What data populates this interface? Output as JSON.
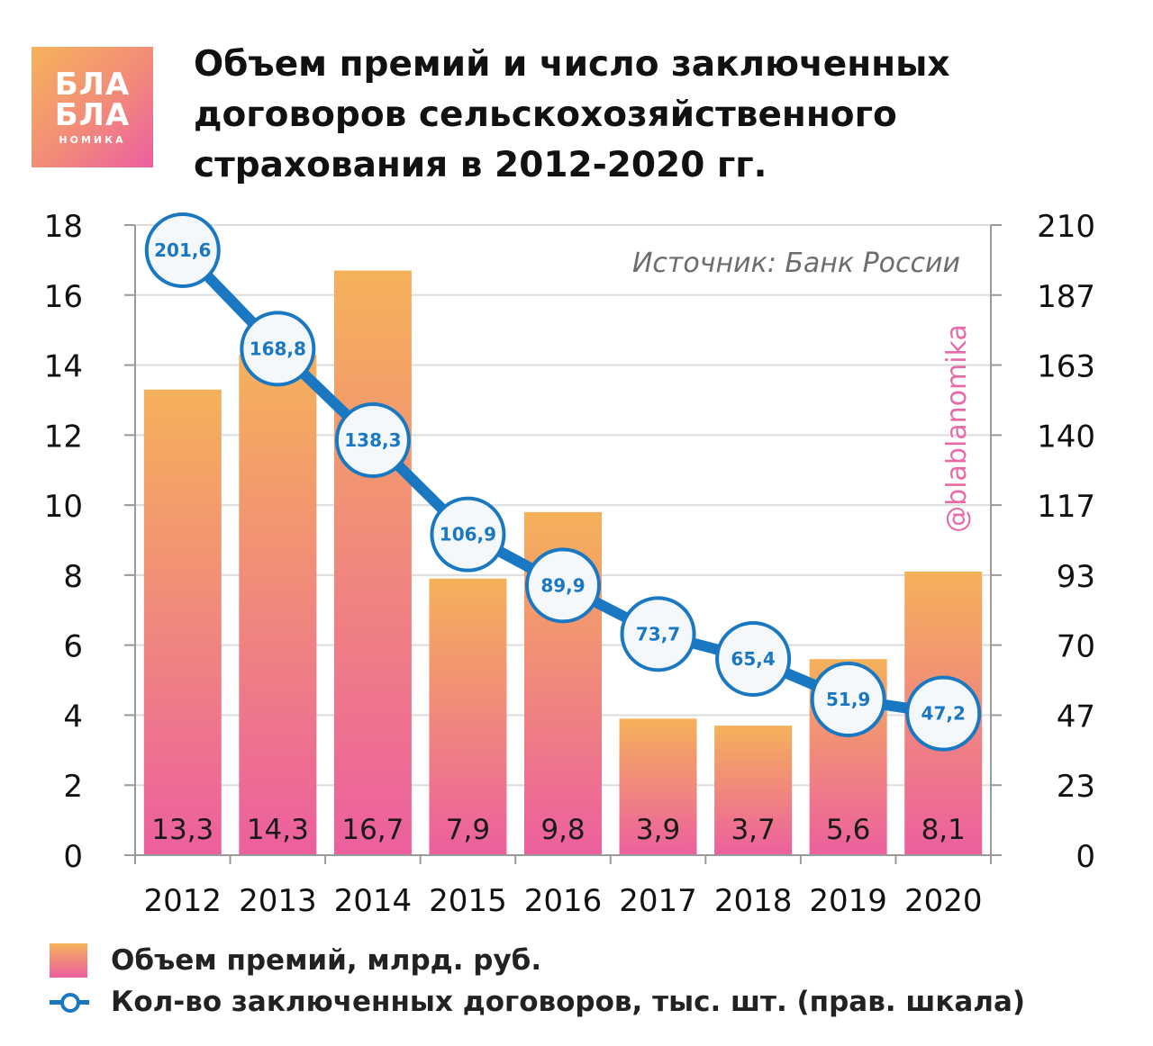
{
  "logo": {
    "line1": "БЛА",
    "line2": "БЛА",
    "line3": "НОМИКА"
  },
  "title_lines": [
    "Объем премий и число заключенных",
    "договоров сельскохозяйственного",
    "страхования в 2012-2020 гг."
  ],
  "source": "Источник: Банк России",
  "watermark": "@blablanomika",
  "colors": {
    "bar_top": "#f5b15a",
    "bar_bottom": "#ec5f9f",
    "line": "#1a78c2",
    "watermark": "#e96aa8"
  },
  "chart_data": {
    "type": "bar",
    "categories": [
      "2012",
      "2013",
      "2014",
      "2015",
      "2016",
      "2017",
      "2018",
      "2019",
      "2020"
    ],
    "series": [
      {
        "name": "Объем премий, млрд. руб.",
        "type": "bar",
        "axis": "left",
        "values": [
          13.3,
          14.3,
          16.7,
          7.9,
          9.8,
          3.9,
          3.7,
          5.6,
          8.1
        ],
        "labels": [
          "13,3",
          "14,3",
          "16,7",
          "7,9",
          "9,8",
          "3,9",
          "3,7",
          "5,6",
          "8,1"
        ]
      },
      {
        "name": "Кол-во заключенных договоров, тыс. шт. (прав. шкала)",
        "type": "line",
        "axis": "right",
        "values": [
          201.6,
          168.8,
          138.3,
          106.9,
          89.9,
          73.7,
          65.4,
          51.9,
          47.2
        ],
        "labels": [
          "201,6",
          "168,8",
          "138,3",
          "106,9",
          "89,9",
          "73,7",
          "65,4",
          "51,9",
          "47,2"
        ]
      }
    ],
    "y_left": {
      "ylim": [
        0,
        18
      ],
      "ticks": [
        "0",
        "2",
        "4",
        "6",
        "8",
        "10",
        "12",
        "14",
        "16",
        "18"
      ]
    },
    "y_right": {
      "ylim": [
        0,
        210
      ],
      "ticks": [
        "0",
        "23",
        "47",
        "70",
        "93",
        "117",
        "140",
        "163",
        "187",
        "210"
      ]
    },
    "grid": true,
    "legend": "bottom-left"
  }
}
